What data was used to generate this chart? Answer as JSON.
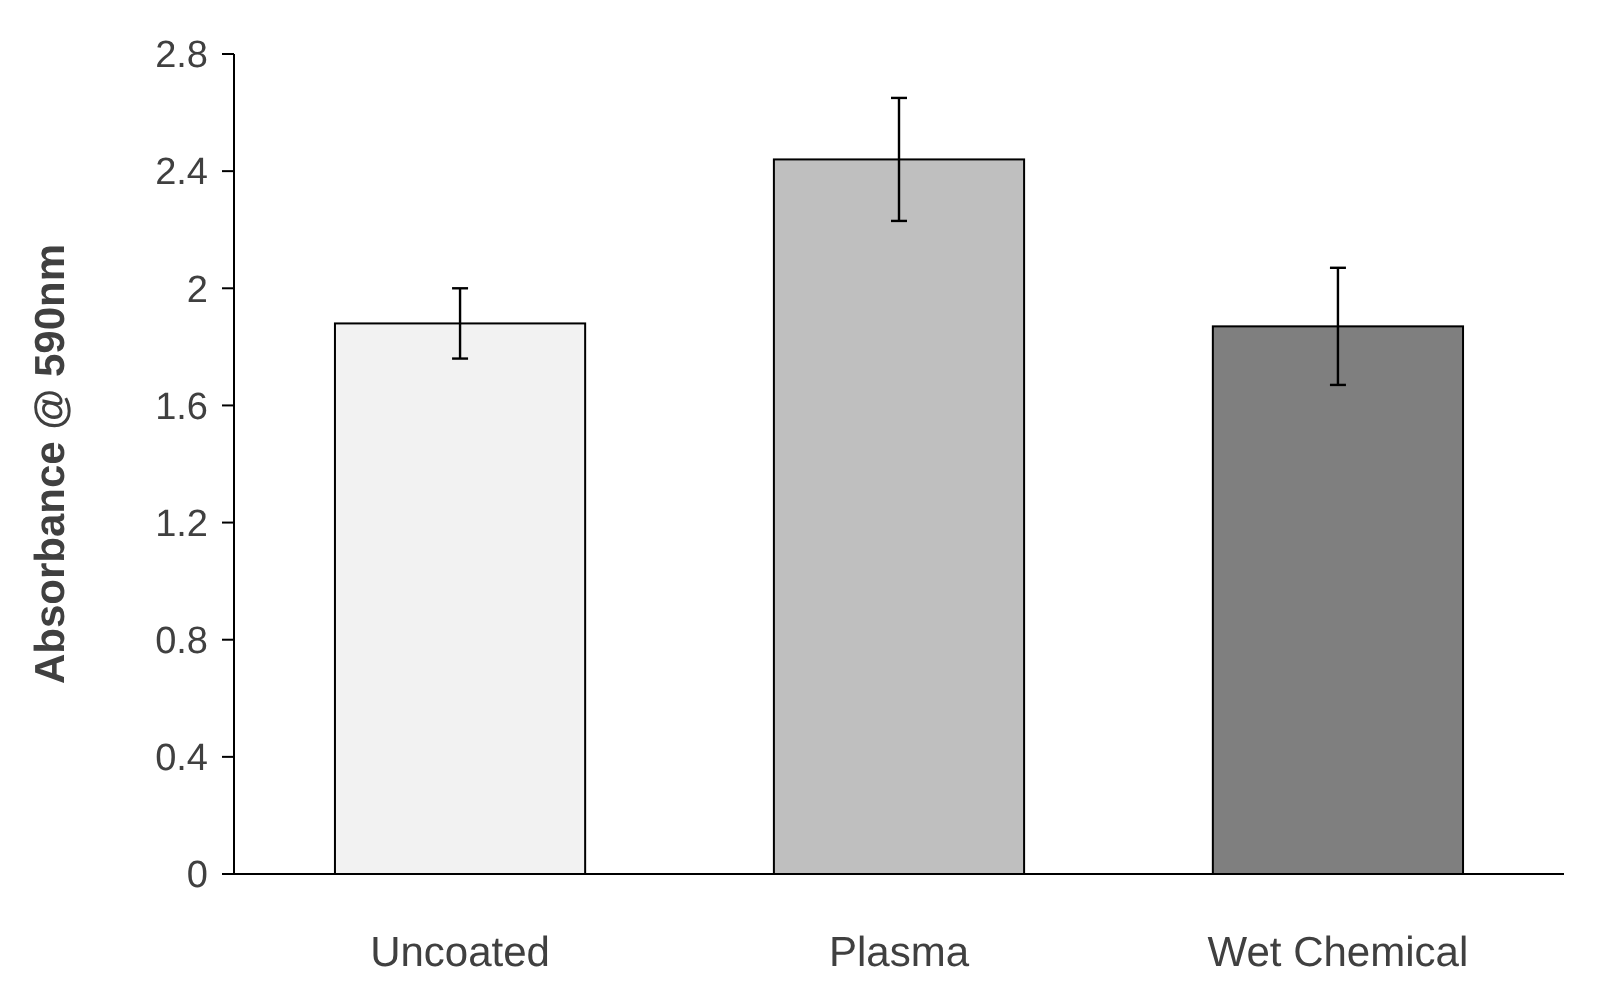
{
  "chart_data": {
    "type": "bar",
    "ylabel": "Absorbance @ 590nm",
    "categories": [
      "Uncoated",
      "Plasma",
      "Wet Chemical"
    ],
    "values": [
      1.88,
      2.44,
      1.87
    ],
    "errors": [
      0.12,
      0.21,
      0.2
    ],
    "colors": [
      "#f2f2f2",
      "#bfbfbf",
      "#7f7f7f"
    ],
    "ylim": [
      0,
      2.8
    ],
    "yticks": [
      0,
      0.4,
      0.8,
      1.2,
      1.6,
      2,
      2.4,
      2.8
    ],
    "grid": false
  }
}
